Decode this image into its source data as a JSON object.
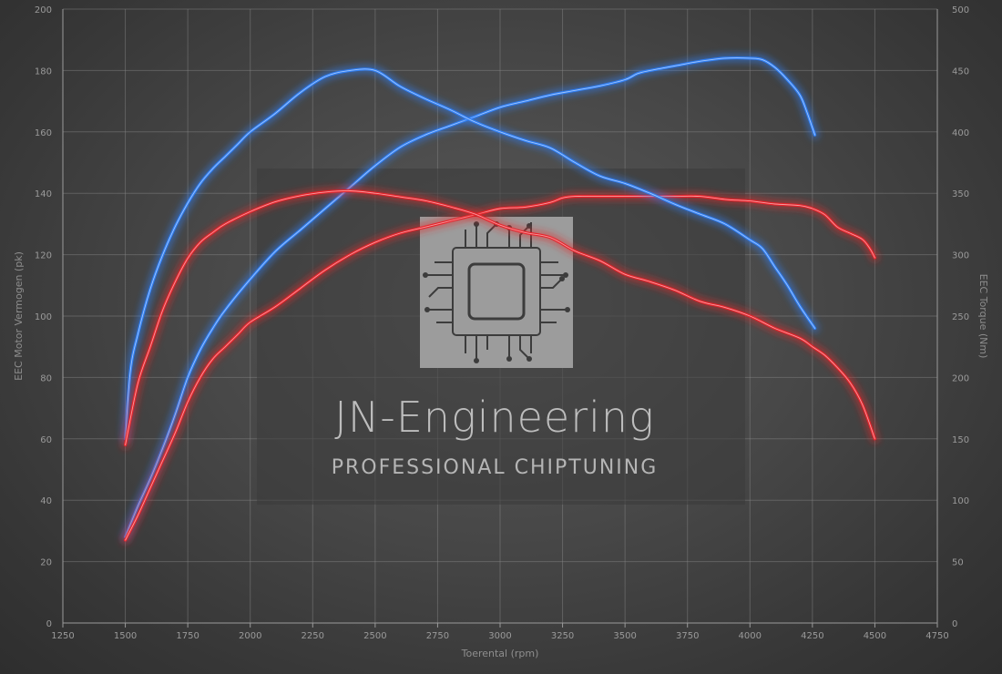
{
  "colors": {
    "power_line": "#2f7ff5",
    "torque_line": "#e8242c",
    "glow": "#ffffff",
    "grid": "#8a8a8a",
    "watermark_panel": "#3a3a3a"
  },
  "watermark": {
    "title": "JN-Engineering",
    "subtitle": "PROFESSIONAL CHIPTUNING",
    "logo_icon": "circuit-chip-icon"
  },
  "chart_data": {
    "type": "line",
    "xlabel": "Toerental (rpm)",
    "ylabel": "EEC Motor Vermogen (pk)",
    "y2label": "EEC Torque (Nm)",
    "xlim": [
      1250,
      4750
    ],
    "ylim": [
      0,
      200
    ],
    "y2lim": [
      0,
      500
    ],
    "xticks": [
      1250,
      1500,
      1750,
      2000,
      2250,
      2500,
      2750,
      3000,
      3250,
      3500,
      3750,
      4000,
      4250,
      4500,
      4750
    ],
    "yticks": [
      0,
      20,
      40,
      60,
      80,
      100,
      120,
      140,
      160,
      180,
      200
    ],
    "y2ticks": [
      0,
      50,
      100,
      150,
      200,
      250,
      300,
      350,
      400,
      450,
      500
    ],
    "grid": true,
    "series": [
      {
        "axis": "left",
        "color": "#2f7ff5",
        "points": [
          [
            1500,
            28
          ],
          [
            1550,
            38
          ],
          [
            1600,
            47
          ],
          [
            1650,
            57
          ],
          [
            1700,
            68
          ],
          [
            1750,
            80
          ],
          [
            1800,
            89
          ],
          [
            1850,
            96
          ],
          [
            1900,
            102
          ],
          [
            2000,
            112
          ],
          [
            2100,
            121
          ],
          [
            2200,
            128
          ],
          [
            2300,
            135
          ],
          [
            2400,
            142
          ],
          [
            2500,
            149
          ],
          [
            2600,
            155
          ],
          [
            2700,
            159
          ],
          [
            2800,
            162
          ],
          [
            2900,
            165
          ],
          [
            3000,
            168
          ],
          [
            3100,
            170
          ],
          [
            3200,
            172
          ],
          [
            3300,
            173.5
          ],
          [
            3400,
            175
          ],
          [
            3500,
            177
          ],
          [
            3550,
            179
          ],
          [
            3600,
            180
          ],
          [
            3700,
            181.5
          ],
          [
            3800,
            183
          ],
          [
            3900,
            184
          ],
          [
            4000,
            184
          ],
          [
            4050,
            183.5
          ],
          [
            4100,
            181
          ],
          [
            4150,
            177
          ],
          [
            4200,
            172
          ],
          [
            4230,
            166
          ],
          [
            4260,
            159
          ]
        ]
      },
      {
        "axis": "left",
        "color": "#e8242c",
        "points": [
          [
            1500,
            27
          ],
          [
            1550,
            35
          ],
          [
            1600,
            44
          ],
          [
            1650,
            53
          ],
          [
            1700,
            62
          ],
          [
            1750,
            72
          ],
          [
            1800,
            80
          ],
          [
            1850,
            86
          ],
          [
            1900,
            90
          ],
          [
            1950,
            94
          ],
          [
            2000,
            98
          ],
          [
            2100,
            103
          ],
          [
            2200,
            109
          ],
          [
            2300,
            115
          ],
          [
            2400,
            120
          ],
          [
            2500,
            124
          ],
          [
            2600,
            127
          ],
          [
            2700,
            129
          ],
          [
            2800,
            131
          ],
          [
            2900,
            133
          ],
          [
            3000,
            135
          ],
          [
            3100,
            135.5
          ],
          [
            3200,
            137
          ],
          [
            3250,
            138.5
          ],
          [
            3300,
            139
          ],
          [
            3400,
            139
          ],
          [
            3500,
            139
          ],
          [
            3600,
            139
          ],
          [
            3700,
            139
          ],
          [
            3800,
            139
          ],
          [
            3900,
            138
          ],
          [
            4000,
            137.5
          ],
          [
            4100,
            136.5
          ],
          [
            4200,
            136
          ],
          [
            4250,
            135
          ],
          [
            4300,
            133
          ],
          [
            4350,
            129
          ],
          [
            4400,
            127
          ],
          [
            4450,
            125
          ],
          [
            4480,
            122
          ],
          [
            4500,
            119
          ]
        ]
      },
      {
        "axis": "right",
        "color": "#2f7ff5",
        "points": [
          [
            1500,
            150
          ],
          [
            1520,
            205
          ],
          [
            1550,
            235
          ],
          [
            1600,
            272
          ],
          [
            1650,
            300
          ],
          [
            1700,
            323
          ],
          [
            1750,
            342
          ],
          [
            1800,
            358
          ],
          [
            1850,
            370
          ],
          [
            1900,
            380
          ],
          [
            1950,
            390
          ],
          [
            2000,
            400
          ],
          [
            2100,
            415
          ],
          [
            2200,
            432
          ],
          [
            2300,
            445
          ],
          [
            2400,
            450
          ],
          [
            2500,
            450
          ],
          [
            2600,
            437
          ],
          [
            2700,
            427
          ],
          [
            2800,
            418
          ],
          [
            2900,
            408
          ],
          [
            3000,
            400
          ],
          [
            3100,
            393
          ],
          [
            3200,
            387
          ],
          [
            3300,
            375
          ],
          [
            3400,
            364
          ],
          [
            3500,
            358
          ],
          [
            3600,
            350
          ],
          [
            3700,
            341
          ],
          [
            3800,
            333
          ],
          [
            3900,
            325
          ],
          [
            4000,
            312
          ],
          [
            4050,
            305
          ],
          [
            4100,
            290
          ],
          [
            4150,
            275
          ],
          [
            4200,
            258
          ],
          [
            4260,
            240
          ]
        ]
      },
      {
        "axis": "right",
        "color": "#e8242c",
        "points": [
          [
            1500,
            145
          ],
          [
            1550,
            195
          ],
          [
            1600,
            225
          ],
          [
            1650,
            255
          ],
          [
            1700,
            278
          ],
          [
            1750,
            297
          ],
          [
            1800,
            310
          ],
          [
            1850,
            318
          ],
          [
            1900,
            325
          ],
          [
            2000,
            335
          ],
          [
            2100,
            343
          ],
          [
            2200,
            348
          ],
          [
            2300,
            351
          ],
          [
            2400,
            352
          ],
          [
            2500,
            350
          ],
          [
            2600,
            347
          ],
          [
            2700,
            344
          ],
          [
            2800,
            339
          ],
          [
            2900,
            333
          ],
          [
            3000,
            324
          ],
          [
            3100,
            318
          ],
          [
            3200,
            314
          ],
          [
            3300,
            303
          ],
          [
            3400,
            295
          ],
          [
            3500,
            284
          ],
          [
            3600,
            278
          ],
          [
            3700,
            271
          ],
          [
            3800,
            262
          ],
          [
            3900,
            257
          ],
          [
            4000,
            250
          ],
          [
            4100,
            240
          ],
          [
            4200,
            232
          ],
          [
            4250,
            225
          ],
          [
            4300,
            218
          ],
          [
            4350,
            208
          ],
          [
            4400,
            196
          ],
          [
            4450,
            178
          ],
          [
            4500,
            150
          ]
        ]
      }
    ]
  }
}
